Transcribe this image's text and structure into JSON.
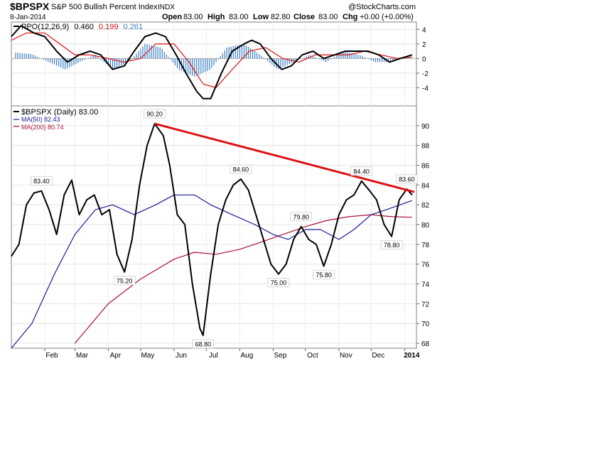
{
  "header": {
    "symbol": "$BPSPX",
    "name": "S&P 500 Bullish Percent Index",
    "exchange": "INDX",
    "copyright": "@StockCharts.com",
    "date": "8-Jan-2014",
    "open_label": "Open",
    "open": "83.00",
    "high_label": "High",
    "high": "83.00",
    "low_label": "Low",
    "low": "82.80",
    "close_label": "Close",
    "close": "83.00",
    "chg_label": "Chg",
    "chg": "+0.00 (+0.00%)"
  },
  "ppo_legend": {
    "label": "PPO(12,26,9)",
    "ppo": "0.460",
    "signal": "0.199",
    "histogram": "0.261"
  },
  "price_legend": {
    "main": "$BPSPX (Daily) 83.00",
    "ma50": "MA(50) 82.43",
    "ma200": "MA(200) 80.74"
  },
  "colors": {
    "price": "#000000",
    "ma50": "#1a1a99",
    "ma200": "#aa1133",
    "trendline": "#dd1111",
    "ppo_signal": "#dd2222",
    "histogram": "#3a7fc4",
    "ppo_line": "#000000"
  },
  "chart_data": [
    {
      "type": "line",
      "title": "PPO(12,26,9)",
      "ylim": [
        -6.5,
        5
      ],
      "y_ticks": [
        "4",
        "2",
        "0",
        "-2",
        "-4"
      ],
      "series": [
        {
          "name": "PPO(12,26,9)",
          "x": [
            "2013-01-01",
            "2013-01-10",
            "2013-01-22",
            "2013-02-01",
            "2013-02-12",
            "2013-02-22",
            "2013-03-05",
            "2013-03-15",
            "2013-03-25",
            "2013-04-05",
            "2013-04-16",
            "2013-04-25",
            "2013-05-05",
            "2013-05-15",
            "2013-05-24",
            "2013-06-03",
            "2013-06-12",
            "2013-06-22",
            "2013-06-28",
            "2013-07-05",
            "2013-07-15",
            "2013-07-25",
            "2013-08-05",
            "2013-08-12",
            "2013-08-20",
            "2013-08-30",
            "2013-09-09",
            "2013-09-18",
            "2013-09-28",
            "2013-10-08",
            "2013-10-18",
            "2013-10-28",
            "2013-11-07",
            "2013-11-18",
            "2013-11-28",
            "2013-12-08",
            "2013-12-18",
            "2013-12-28",
            "2014-01-08"
          ],
          "values": [
            3.0,
            4.5,
            3.5,
            3.0,
            1.0,
            -0.5,
            0.5,
            1.0,
            0.5,
            -1.5,
            -1.0,
            1.0,
            3.0,
            3.5,
            3.0,
            0.5,
            -2.0,
            -4.5,
            -5.5,
            -5.5,
            -2.0,
            1.0,
            2.0,
            2.5,
            2.0,
            0.0,
            -1.5,
            -1.0,
            0.5,
            1.0,
            0.0,
            0.5,
            1.0,
            1.0,
            1.0,
            0.5,
            -0.5,
            0.0,
            0.5
          ]
        },
        {
          "name": "Signal",
          "x": [
            "2013-01-01",
            "2013-01-15",
            "2013-02-01",
            "2013-02-15",
            "2013-03-01",
            "2013-03-15",
            "2013-04-01",
            "2013-04-15",
            "2013-05-01",
            "2013-05-15",
            "2013-06-01",
            "2013-06-15",
            "2013-06-28",
            "2013-07-10",
            "2013-07-25",
            "2013-08-10",
            "2013-08-25",
            "2013-09-10",
            "2013-09-25",
            "2013-10-10",
            "2013-10-25",
            "2013-11-10",
            "2013-11-25",
            "2013-12-10",
            "2013-12-25",
            "2014-01-08"
          ],
          "values": [
            2.5,
            3.5,
            3.5,
            2.0,
            0.5,
            0.5,
            0.0,
            -0.5,
            0.0,
            2.0,
            2.0,
            -0.5,
            -3.5,
            -4.0,
            -1.5,
            1.0,
            1.5,
            0.0,
            -0.5,
            0.5,
            0.5,
            0.5,
            1.0,
            0.5,
            0.0,
            0.2
          ]
        },
        {
          "name": "Histogram",
          "x": [
            "2013-01-05",
            "2013-01-20",
            "2013-02-05",
            "2013-02-20",
            "2013-03-05",
            "2013-03-20",
            "2013-04-05",
            "2013-04-20",
            "2013-05-05",
            "2013-05-20",
            "2013-06-05",
            "2013-06-20",
            "2013-07-05",
            "2013-07-20",
            "2013-08-05",
            "2013-08-20",
            "2013-09-05",
            "2013-09-20",
            "2013-10-05",
            "2013-10-20",
            "2013-11-05",
            "2013-11-20",
            "2013-12-05",
            "2013-12-20",
            "2014-01-05"
          ],
          "values": [
            0.8,
            0.6,
            -0.5,
            -1.5,
            -0.5,
            0.5,
            -1.5,
            -0.5,
            2.0,
            1.5,
            -1.5,
            -2.5,
            -1.5,
            1.5,
            2.0,
            0.5,
            -1.5,
            -0.5,
            0.5,
            -0.5,
            1.0,
            0.5,
            -0.5,
            -0.5,
            0.3
          ]
        }
      ]
    },
    {
      "type": "line",
      "title": "$BPSPX (Daily) 83.00",
      "ylim": [
        67.5,
        92
      ],
      "y_ticks": [
        "90",
        "88",
        "86",
        "84",
        "82",
        "80",
        "78",
        "76",
        "74",
        "72",
        "70",
        "68"
      ],
      "x_ticks": [
        "Feb",
        "Mar",
        "Apr",
        "May",
        "Jun",
        "Jul",
        "Aug",
        "Sep",
        "Oct",
        "Nov",
        "Dec",
        "2014"
      ],
      "series": [
        {
          "name": "$BPSPX (Daily) 83.00",
          "x": [
            "2013-01-01",
            "2013-01-08",
            "2013-01-15",
            "2013-01-22",
            "2013-01-29",
            "2013-02-05",
            "2013-02-12",
            "2013-02-19",
            "2013-02-26",
            "2013-03-05",
            "2013-03-12",
            "2013-03-19",
            "2013-03-26",
            "2013-04-02",
            "2013-04-09",
            "2013-04-16",
            "2013-04-23",
            "2013-04-30",
            "2013-05-07",
            "2013-05-14",
            "2013-05-22",
            "2013-05-28",
            "2013-06-04",
            "2013-06-11",
            "2013-06-18",
            "2013-06-25",
            "2013-06-28",
            "2013-07-05",
            "2013-07-12",
            "2013-07-19",
            "2013-07-26",
            "2013-08-02",
            "2013-08-09",
            "2013-08-16",
            "2013-08-23",
            "2013-08-30",
            "2013-09-06",
            "2013-09-13",
            "2013-09-20",
            "2013-09-27",
            "2013-10-04",
            "2013-10-11",
            "2013-10-18",
            "2013-10-25",
            "2013-11-01",
            "2013-11-08",
            "2013-11-15",
            "2013-11-22",
            "2013-11-29",
            "2013-12-06",
            "2013-12-13",
            "2013-12-20",
            "2013-12-27",
            "2014-01-03",
            "2014-01-08"
          ],
          "values": [
            76.8,
            78.0,
            82.0,
            83.2,
            83.4,
            81.5,
            79.0,
            83.0,
            84.5,
            81.0,
            82.5,
            83.0,
            81.0,
            81.5,
            77.0,
            75.2,
            78.5,
            84.0,
            88.0,
            90.2,
            89.0,
            86.0,
            81.0,
            80.0,
            74.0,
            69.5,
            68.8,
            75.0,
            80.0,
            82.5,
            84.0,
            84.6,
            83.5,
            81.0,
            78.5,
            76.0,
            75.0,
            76.0,
            78.5,
            79.8,
            78.5,
            78.0,
            75.8,
            78.0,
            81.0,
            82.5,
            83.0,
            84.4,
            83.5,
            82.5,
            80.0,
            78.8,
            82.5,
            83.6,
            83.0
          ]
        },
        {
          "name": "MA(50) 82.43",
          "x": [
            "2013-01-01",
            "2013-01-20",
            "2013-02-10",
            "2013-03-01",
            "2013-03-20",
            "2013-04-05",
            "2013-04-25",
            "2013-05-15",
            "2013-06-01",
            "2013-06-20",
            "2013-07-05",
            "2013-07-25",
            "2013-08-15",
            "2013-09-01",
            "2013-09-15",
            "2013-10-01",
            "2013-10-15",
            "2013-11-01",
            "2013-11-15",
            "2013-12-01",
            "2013-12-15",
            "2014-01-08"
          ],
          "values": [
            67.5,
            70.0,
            75.0,
            79.0,
            81.5,
            82.0,
            81.0,
            82.0,
            83.0,
            83.0,
            82.0,
            81.0,
            80.0,
            79.0,
            78.5,
            79.5,
            79.5,
            78.5,
            79.5,
            81.0,
            81.5,
            82.43
          ]
        },
        {
          "name": "MA(200) 80.74",
          "x": [
            "2013-03-01",
            "2013-04-01",
            "2013-05-01",
            "2013-06-01",
            "2013-06-20",
            "2013-07-10",
            "2013-08-01",
            "2013-08-20",
            "2013-09-10",
            "2013-10-01",
            "2013-10-20",
            "2013-11-10",
            "2013-12-01",
            "2013-12-20",
            "2014-01-08"
          ],
          "values": [
            68.0,
            72.0,
            74.5,
            76.5,
            77.2,
            77.0,
            77.5,
            78.2,
            79.0,
            79.8,
            80.4,
            80.8,
            81.0,
            80.8,
            80.74
          ]
        }
      ],
      "annotations": [
        {
          "text": "90.20",
          "x": "2013-05-14",
          "y": 90.2
        },
        {
          "text": "83.40",
          "x": "2013-01-29",
          "y": 83.4
        },
        {
          "text": "75.20",
          "x": "2013-04-16",
          "y": 75.2
        },
        {
          "text": "68.80",
          "x": "2013-06-28",
          "y": 68.8
        },
        {
          "text": "84.60",
          "x": "2013-08-02",
          "y": 84.6
        },
        {
          "text": "75.00",
          "x": "2013-09-06",
          "y": 75.0
        },
        {
          "text": "79.80",
          "x": "2013-09-27",
          "y": 79.8
        },
        {
          "text": "75.80",
          "x": "2013-10-18",
          "y": 75.8
        },
        {
          "text": "84.40",
          "x": "2013-11-22",
          "y": 84.4
        },
        {
          "text": "78.80",
          "x": "2013-12-20",
          "y": 78.8
        },
        {
          "text": "83.60",
          "x": "2014-01-03",
          "y": 83.6
        }
      ],
      "trendline": {
        "from": {
          "x": "2013-05-14",
          "y": 90.2
        },
        "to": {
          "x": "2014-01-10",
          "y": 83.3
        }
      }
    }
  ]
}
